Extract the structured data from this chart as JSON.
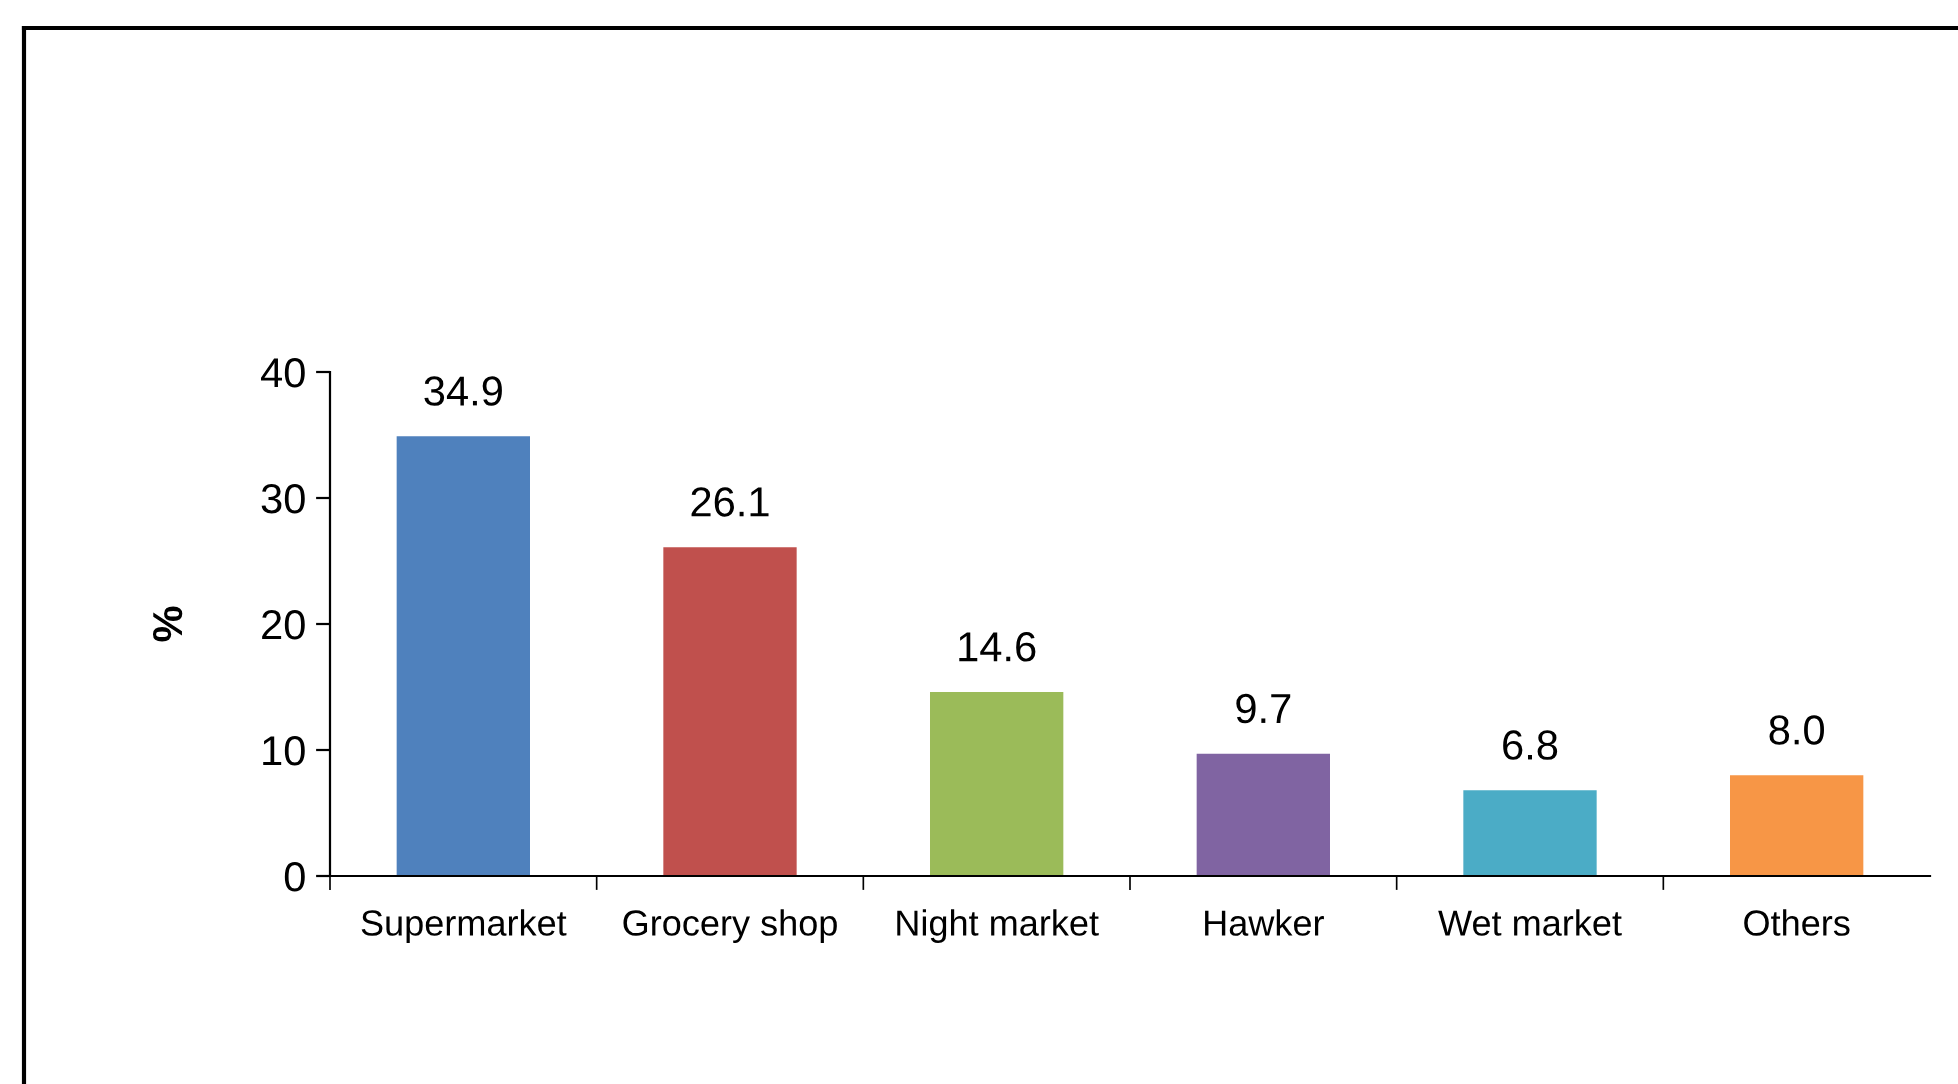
{
  "chart_data": {
    "type": "bar",
    "ylabel": "%",
    "categories": [
      "Supermarket",
      "Grocery shop",
      "Night market",
      "Hawker",
      "Wet market",
      "Others"
    ],
    "values": [
      34.9,
      26.1,
      14.6,
      9.7,
      6.8,
      8.0
    ],
    "value_labels": [
      "34.9",
      "26.1",
      "14.6",
      "9.7",
      "6.8",
      "8.0"
    ],
    "colors": [
      "#4f81bd",
      "#c0504d",
      "#9bbb59",
      "#8064a2",
      "#4bacc6",
      "#f79646"
    ],
    "ylim": [
      0,
      40
    ],
    "yticks": [
      0,
      10,
      20,
      30,
      40
    ],
    "grid": false
  }
}
